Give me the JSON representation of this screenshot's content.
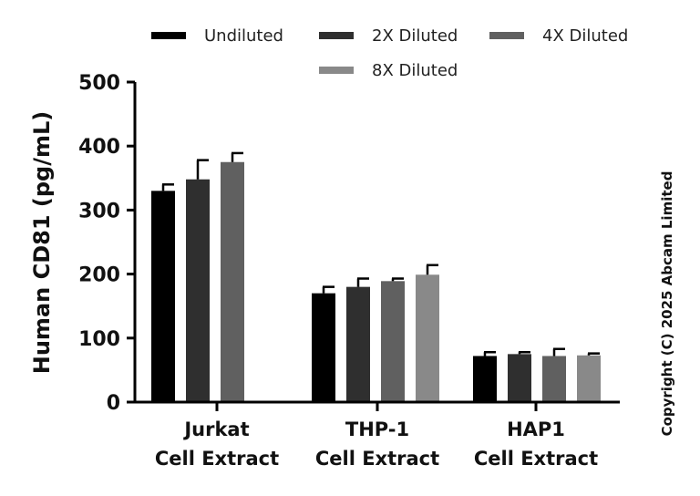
{
  "chart_data": {
    "type": "bar",
    "ylabel": "Human CD81 (pg/mL)",
    "ylim": [
      0,
      500
    ],
    "yticks": [
      "0",
      "100",
      "200",
      "300",
      "400",
      "500"
    ],
    "categories": [
      [
        "Jurkat",
        "Cell Extract"
      ],
      [
        "THP-1",
        "Cell Extract"
      ],
      [
        "HAP1",
        "Cell Extract"
      ]
    ],
    "series": [
      {
        "name": "Undiluted",
        "color": "#000000",
        "values": [
          330,
          170,
          72
        ],
        "errors": [
          10,
          10,
          6
        ]
      },
      {
        "name": "2X Diluted",
        "color": "#2f2f2f",
        "values": [
          348,
          180,
          75
        ],
        "errors": [
          30,
          13,
          3
        ]
      },
      {
        "name": "4X Diluted",
        "color": "#606060",
        "values": [
          375,
          189,
          72
        ],
        "errors": [
          14,
          4,
          11
        ]
      },
      {
        "name": "8X Diluted",
        "color": "#898989",
        "values": [
          null,
          199,
          73
        ],
        "errors": [
          null,
          15,
          3
        ]
      }
    ],
    "legend_position": "top",
    "grid": false
  },
  "copyright": "Copyright (C) 2025 Abcam Limited"
}
